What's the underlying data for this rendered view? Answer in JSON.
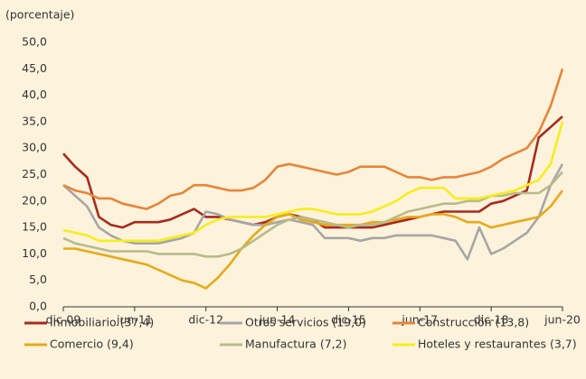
{
  "chart_data": {
    "type": "line",
    "y_label": "(porcentaje)",
    "categories": [
      "dic-09",
      null,
      null,
      null,
      null,
      null,
      "jun-11",
      null,
      null,
      null,
      null,
      null,
      "dic-12",
      null,
      null,
      null,
      null,
      null,
      "jun-14",
      null,
      null,
      null,
      null,
      null,
      "dic-15",
      null,
      null,
      null,
      null,
      null,
      "jun-17",
      null,
      null,
      null,
      null,
      null,
      "dic-18",
      null,
      null,
      null,
      null,
      null,
      "jun-20"
    ],
    "ylim": [
      0,
      50
    ],
    "yticks": [
      {
        "value": 0,
        "label": "0,0"
      },
      {
        "value": 5,
        "label": "5,0"
      },
      {
        "value": 10,
        "label": "10,0"
      },
      {
        "value": 15,
        "label": "15,0"
      },
      {
        "value": 20,
        "label": "20,0"
      },
      {
        "value": 25,
        "label": "25,0"
      },
      {
        "value": 30,
        "label": "30,0"
      },
      {
        "value": 35,
        "label": "35,0"
      },
      {
        "value": 40,
        "label": "40,0"
      },
      {
        "value": 45,
        "label": "45,0"
      },
      {
        "value": 50,
        "label": "50,0"
      }
    ],
    "grid": false,
    "series": [
      {
        "name": "Inmobiliario (37,4)",
        "color": "#a82a1e",
        "values": [
          29,
          26.5,
          24.5,
          17,
          15.5,
          15,
          16,
          16,
          16,
          16.5,
          17.5,
          18.5,
          17,
          17,
          16.5,
          16,
          15.5,
          16,
          17,
          17.5,
          17,
          16.5,
          15,
          15,
          15,
          15,
          15,
          15.5,
          16,
          16.5,
          17,
          17.5,
          18,
          18,
          18,
          18,
          19.5,
          20,
          21,
          22,
          32,
          34,
          36
        ]
      },
      {
        "name": "Otros servicios (19,0)",
        "color": "#a6a6a6",
        "values": [
          23,
          21,
          19,
          15,
          13.5,
          12.5,
          12,
          12,
          12,
          12.5,
          13,
          14,
          18,
          17.5,
          16.5,
          16,
          15.5,
          15.5,
          16,
          16.5,
          16,
          15.5,
          13,
          13,
          13,
          12.5,
          13,
          13,
          13.5,
          13.5,
          13.5,
          13.5,
          13,
          12.5,
          9,
          15,
          10,
          11,
          12.5,
          14,
          17,
          23,
          27
        ]
      },
      {
        "name": "Construcción (13,8)",
        "color": "#e8843a",
        "values": [
          23,
          22,
          21.5,
          20.5,
          20.5,
          19.5,
          19,
          18.5,
          19.5,
          21,
          21.5,
          23,
          23,
          22.5,
          22,
          22,
          22.5,
          24,
          26.5,
          27,
          26.5,
          26,
          25.5,
          25,
          25.5,
          26.5,
          26.5,
          26.5,
          25.5,
          24.5,
          24.5,
          24,
          24.5,
          24.5,
          25,
          25.5,
          26.5,
          28,
          29,
          30,
          33,
          38,
          45
        ]
      },
      {
        "name": "Comercio (9,4)",
        "color": "#e8a919",
        "values": [
          11,
          11,
          10.5,
          10,
          9.5,
          9,
          8.5,
          8,
          7,
          6,
          5,
          4.5,
          3.5,
          5.5,
          8,
          11,
          13.5,
          15.5,
          17,
          17.5,
          16.5,
          16,
          15.5,
          15.5,
          15.5,
          15.5,
          16,
          16,
          16.5,
          17,
          17,
          17.5,
          17.5,
          17,
          16,
          16,
          15,
          15.5,
          16,
          16.5,
          17,
          19,
          22
        ]
      },
      {
        "name": "Manufactura (7,2)",
        "color": "#b7bb8a",
        "values": [
          13,
          12,
          11.5,
          11,
          10.5,
          10.5,
          10.5,
          10.5,
          10,
          10,
          10,
          10,
          9.5,
          9.5,
          10,
          11,
          12.5,
          14,
          15.5,
          16.5,
          17,
          16.5,
          16,
          15.5,
          15,
          15.5,
          15.5,
          16,
          17,
          18,
          18.5,
          19,
          19.5,
          19.5,
          20,
          20,
          21,
          21,
          21.5,
          21.5,
          21.5,
          23,
          25.5
        ]
      },
      {
        "name": "Hoteles y restaurantes (3,7)",
        "color": "#f7ee1a",
        "values": [
          14.5,
          14,
          13.5,
          12.5,
          12.5,
          12.5,
          12.5,
          12.5,
          12.5,
          13,
          13.5,
          14,
          15.5,
          16.5,
          17,
          17,
          17,
          17,
          17.5,
          18,
          18.5,
          18.5,
          18,
          17.5,
          17.5,
          17.5,
          18,
          19,
          20,
          21.5,
          22.5,
          22.5,
          22.5,
          20.5,
          20.5,
          20.5,
          21,
          21.5,
          22,
          23,
          24,
          27,
          35
        ]
      }
    ]
  }
}
